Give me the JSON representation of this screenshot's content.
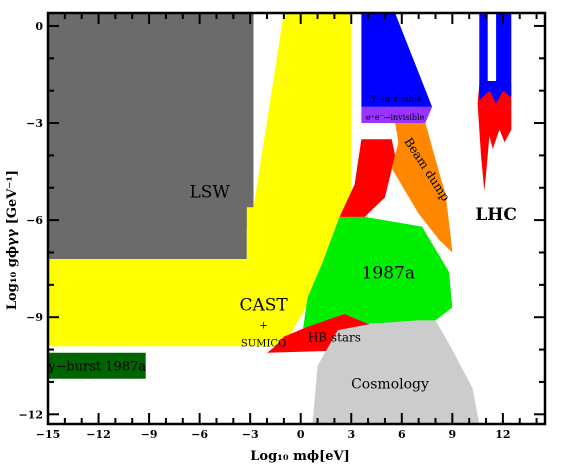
{
  "chart_data": {
    "type": "area",
    "xlabel": "Log₁₀ mϕ[eV]",
    "ylabel": "Log₁₀ gϕγγ [GeV⁻¹]",
    "xlim": [
      -15,
      14.5
    ],
    "ylim": [
      -12.3,
      0.4
    ],
    "x_ticks": [
      -15,
      -12,
      -9,
      -6,
      -3,
      0,
      3,
      6,
      9,
      12
    ],
    "y_ticks": [
      0,
      -3,
      -6,
      -9,
      -12
    ],
    "x_tick_labels": [
      "−15",
      "−12",
      "−9",
      "−6",
      "−3",
      "0",
      "3",
      "6",
      "9",
      "12"
    ],
    "y_tick_labels": [
      "0",
      "−3",
      "−6",
      "−9",
      "−12"
    ],
    "colors": {
      "lsw": "#6b6b6b",
      "cast": "#ffff00",
      "grb": "#006400",
      "sn1987a": "#00ee00",
      "hb": "#ff0000",
      "cosmology": "#cccccc",
      "upsilon": "#0000ff",
      "ee": "#9933ff",
      "beam_dump": "#ff8800",
      "lhc_red": "#ff0000",
      "lhc_blue": "#0000ff"
    },
    "regions": [
      {
        "key": "lsw",
        "label": "LSW",
        "polygon": [
          [
            -15,
            0.4
          ],
          [
            -2.8,
            0.4
          ],
          [
            -2.8,
            -5.6
          ],
          [
            -3.0,
            -5.9
          ],
          [
            -3.2,
            -6.3
          ],
          [
            -3.2,
            -7.2
          ],
          [
            -15,
            -7.2
          ]
        ]
      },
      {
        "key": "cast",
        "label": "CAST",
        "polygon": [
          [
            -15,
            -7.2
          ],
          [
            -3.2,
            -7.2
          ],
          [
            -3.2,
            -5.6
          ],
          [
            -2.8,
            -5.6
          ],
          [
            -1.0,
            0.4
          ],
          [
            3.0,
            0.4
          ],
          [
            3.0,
            -5.9
          ],
          [
            2.3,
            -6.4
          ],
          [
            0.2,
            -8.8
          ],
          [
            -0.6,
            -9.5
          ],
          [
            -1.2,
            -9.9
          ],
          [
            -15,
            -9.9
          ]
        ]
      },
      {
        "key": "grb",
        "label": "γ−burst 1987a",
        "polygon": [
          [
            -15,
            -10.1
          ],
          [
            -9.2,
            -10.1
          ],
          [
            -9.2,
            -10.9
          ],
          [
            -15,
            -10.9
          ]
        ]
      },
      {
        "key": "sn1987a",
        "label": "1987a",
        "polygon": [
          [
            2.3,
            -5.9
          ],
          [
            3.8,
            -5.9
          ],
          [
            7.2,
            -6.2
          ],
          [
            8.8,
            -7.6
          ],
          [
            9.0,
            -8.7
          ],
          [
            8.0,
            -9.1
          ],
          [
            4.0,
            -9.2
          ],
          [
            2.6,
            -8.9
          ],
          [
            0.1,
            -9.5
          ],
          [
            0.4,
            -8.4
          ],
          [
            1.3,
            -7.3
          ]
        ]
      },
      {
        "key": "hb",
        "label": "HB stars",
        "polygon": [
          [
            -1.0,
            -9.6
          ],
          [
            0.4,
            -9.3
          ],
          [
            2.6,
            -8.9
          ],
          [
            4.0,
            -9.2
          ],
          [
            4.8,
            -9.3
          ],
          [
            4.3,
            -10.0
          ],
          [
            -2.0,
            -10.1
          ],
          [
            -1.5,
            -9.9
          ]
        ]
      },
      {
        "key": "hb_upper",
        "label": "",
        "polygon": [
          [
            3.2,
            -4.9
          ],
          [
            3.6,
            -3.5
          ],
          [
            5.4,
            -3.5
          ],
          [
            5.6,
            -4.0
          ],
          [
            5.0,
            -5.3
          ],
          [
            3.8,
            -5.9
          ],
          [
            2.3,
            -5.9
          ]
        ]
      },
      {
        "key": "cosmology",
        "label": "Cosmology",
        "polygon": [
          [
            0.7,
            -12.3
          ],
          [
            1.0,
            -10.5
          ],
          [
            2.2,
            -9.4
          ],
          [
            4.2,
            -9.2
          ],
          [
            6.9,
            -9.1
          ],
          [
            8.0,
            -9.1
          ],
          [
            9.0,
            -10.0
          ],
          [
            10.2,
            -11.2
          ],
          [
            10.6,
            -12.3
          ]
        ]
      },
      {
        "key": "upsilon",
        "label": "Υ→invisible",
        "polygon": [
          [
            3.6,
            0.4
          ],
          [
            5.6,
            0.4
          ],
          [
            7.8,
            -2.5
          ],
          [
            3.6,
            -2.5
          ]
        ]
      },
      {
        "key": "ee",
        "label": "e⁺e⁻→invisible",
        "polygon": [
          [
            3.6,
            -2.5
          ],
          [
            7.8,
            -2.5
          ],
          [
            7.4,
            -3.0
          ],
          [
            3.6,
            -3.0
          ]
        ]
      },
      {
        "key": "beam_dump",
        "label": "Beam dump",
        "polygon": [
          [
            5.6,
            -3.0
          ],
          [
            7.4,
            -3.0
          ],
          [
            8.2,
            -4.5
          ],
          [
            8.6,
            -5.2
          ],
          [
            8.9,
            -6.5
          ],
          [
            9.0,
            -7.0
          ],
          [
            8.2,
            -6.6
          ],
          [
            7.0,
            -5.8
          ],
          [
            5.4,
            -4.4
          ],
          [
            5.8,
            -3.6
          ]
        ]
      },
      {
        "key": "lhc_red",
        "label": "",
        "polygon": [
          [
            10.6,
            -1.8
          ],
          [
            12.5,
            -1.8
          ],
          [
            12.5,
            -3.2
          ],
          [
            12.1,
            -3.6
          ],
          [
            11.8,
            -3.2
          ],
          [
            11.4,
            -3.8
          ],
          [
            11.2,
            -3.4
          ],
          [
            11.0,
            -4.6
          ],
          [
            10.9,
            -5.1
          ],
          [
            10.7,
            -4.0
          ],
          [
            10.6,
            -3.2
          ],
          [
            10.5,
            -2.4
          ]
        ]
      },
      {
        "key": "lhc_blue",
        "label": "",
        "polygon": [
          [
            10.6,
            0.4
          ],
          [
            11.1,
            0.4
          ],
          [
            11.1,
            -1.7
          ],
          [
            11.6,
            -1.7
          ],
          [
            11.6,
            0.4
          ],
          [
            12.5,
            0.4
          ],
          [
            12.5,
            -2.2
          ],
          [
            12.0,
            -2.0
          ],
          [
            11.6,
            -2.4
          ],
          [
            11.2,
            -2.0
          ],
          [
            10.6,
            -2.3
          ]
        ]
      }
    ],
    "annotations": [
      {
        "text": "LSW",
        "x": -5.4,
        "y": -5.3,
        "size": 17
      },
      {
        "text": "CAST",
        "x": -2.2,
        "y": -8.8,
        "size": 17
      },
      {
        "text": "+",
        "x": -2.2,
        "y": -9.35,
        "size": 10
      },
      {
        "text": "SUMICO",
        "x": -2.2,
        "y": -9.9,
        "size": 10
      },
      {
        "text": "γ−burst 1987a",
        "x": -12.1,
        "y": -10.65,
        "size": 13,
        "color": "#ffffff"
      },
      {
        "text": "1987a",
        "x": 5.2,
        "y": -7.8,
        "size": 17
      },
      {
        "text": "HB stars",
        "x": 2.0,
        "y": -9.75,
        "size": 12,
        "color": "#ffffff"
      },
      {
        "text": "Cosmology",
        "x": 5.3,
        "y": -11.2,
        "size": 14
      },
      {
        "text": "Υ→invisible",
        "x": 5.7,
        "y": -2.35,
        "size": 9,
        "color": "#ffffff"
      },
      {
        "text": "e⁺e⁻→invisible",
        "x": 5.6,
        "y": -2.9,
        "size": 8,
        "color": "#ffffff"
      },
      {
        "text": "Beam dump",
        "x": 7.3,
        "y": -4.5,
        "size": 12,
        "rotate": 57
      },
      {
        "text": "LHC",
        "x": 11.6,
        "y": -6.0,
        "size": 17,
        "bold": true
      }
    ]
  }
}
